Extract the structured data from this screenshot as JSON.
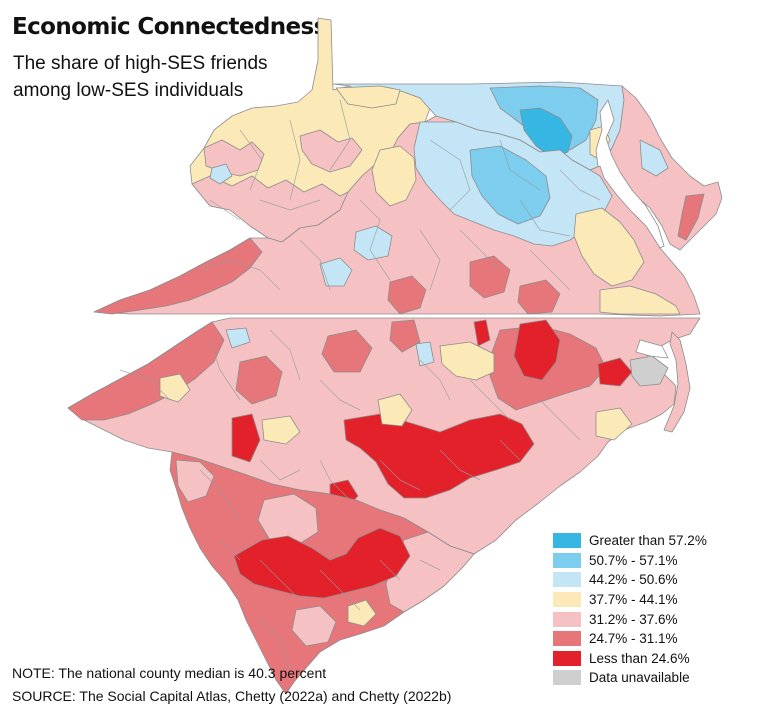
{
  "title": "Economic Connectedness",
  "subtitle": "The share of high-SES friends among low-SES individuals",
  "legend": [
    {
      "label": "Greater than 57.2%",
      "color": "#36b6e3"
    },
    {
      "label": "50.7% - 57.1%",
      "color": "#7dcdee"
    },
    {
      "label": "44.2% - 50.6%",
      "color": "#c4e5f5"
    },
    {
      "label": "37.7% - 44.1%",
      "color": "#fbe9b8"
    },
    {
      "label": "31.2% - 37.6%",
      "color": "#f6c1c3"
    },
    {
      "label": "24.7% - 31.1%",
      "color": "#e6767a"
    },
    {
      "label": "Less than 24.6%",
      "color": "#e3212a"
    },
    {
      "label": "Data unavailable",
      "color": "#cfcfcf"
    }
  ],
  "note": "NOTE: The national county median is 40.3 percent",
  "source": "SOURCE: The Social Capital Atlas, Chetty (2022a) and Chetty (2022b)"
}
